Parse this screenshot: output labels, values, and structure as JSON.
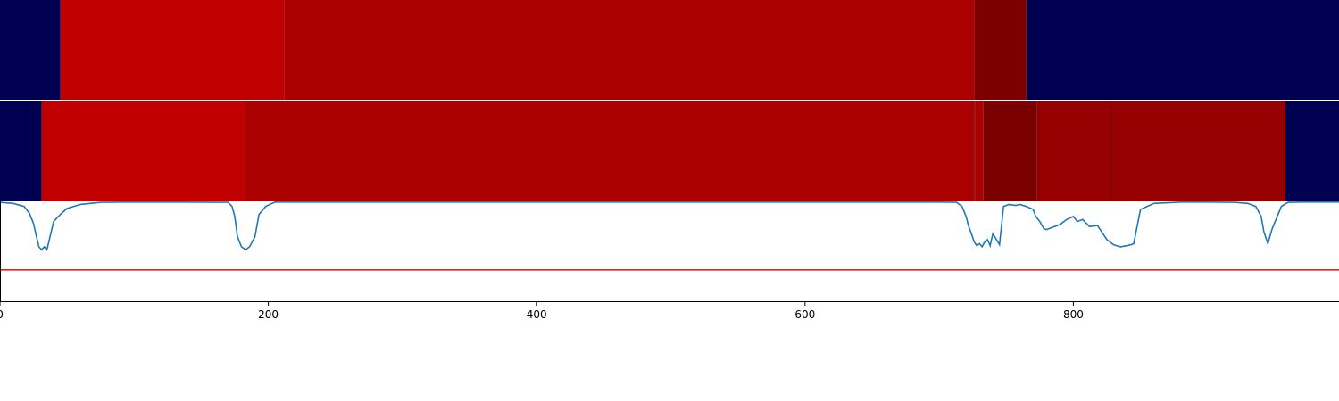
{
  "chart_data": {
    "type": "heatmap",
    "title": "",
    "xlabel": "",
    "ylabel": "",
    "xlim": [
      0,
      998
    ],
    "x_ticks": [
      0,
      200,
      400,
      600,
      800
    ],
    "colors": {
      "background": "#000050",
      "segment_light": "#c00000",
      "segment_mid": "#aa0000",
      "segment_dark": "#960000",
      "segment_darkest": "#7a0000",
      "line": "#1f77b4",
      "threshold": "#d62728"
    },
    "tracks": [
      {
        "segments": [
          {
            "start": 0,
            "end": 45,
            "color": "#000050"
          },
          {
            "start": 45,
            "end": 212,
            "color": "#c00000"
          },
          {
            "start": 212,
            "end": 726,
            "color": "#aa0000"
          },
          {
            "start": 726,
            "end": 765,
            "color": "#7d0000"
          },
          {
            "start": 765,
            "end": 998,
            "color": "#000050"
          }
        ]
      },
      {
        "segments": [
          {
            "start": 0,
            "end": 31,
            "color": "#000050"
          },
          {
            "start": 31,
            "end": 182,
            "color": "#c00000"
          },
          {
            "start": 182,
            "end": 726,
            "color": "#aa0000"
          },
          {
            "start": 726,
            "end": 727,
            "color": "#7a0000"
          },
          {
            "start": 727,
            "end": 733,
            "color": "#aa0000"
          },
          {
            "start": 733,
            "end": 773,
            "color": "#7a0000"
          },
          {
            "start": 773,
            "end": 828,
            "color": "#960000"
          },
          {
            "start": 828,
            "end": 829,
            "color": "#7a0000"
          },
          {
            "start": 829,
            "end": 958,
            "color": "#960000"
          },
          {
            "start": 958,
            "end": 998,
            "color": "#000050"
          }
        ]
      }
    ],
    "line_panel": {
      "ylim": [
        0,
        1
      ],
      "threshold": 0.32,
      "series": [
        {
          "x": [
            0,
            10,
            18,
            22,
            25,
            27,
            29,
            31,
            33,
            35,
            40,
            45,
            50,
            60,
            75,
            90,
            110,
            130,
            170,
            173,
            175,
            177,
            180,
            183,
            186,
            190,
            193,
            198,
            205,
            600,
            700,
            713,
            717,
            720,
            722,
            724,
            726,
            728,
            730,
            732,
            734,
            736,
            738,
            740,
            745,
            748,
            752,
            757,
            760,
            765,
            770,
            772,
            775,
            778,
            780,
            790,
            795,
            800,
            803,
            807,
            812,
            818,
            825,
            830,
            835,
            840,
            843,
            845,
            850,
            860,
            880,
            900,
            920,
            930,
            936,
            940,
            942,
            945,
            948,
            955,
            960,
            970,
            998
          ],
          "y": [
            0.99,
            0.98,
            0.95,
            0.88,
            0.78,
            0.66,
            0.55,
            0.52,
            0.55,
            0.52,
            0.8,
            0.87,
            0.93,
            0.97,
            0.99,
            1.0,
            1.0,
            1.0,
            0.99,
            0.95,
            0.85,
            0.65,
            0.55,
            0.52,
            0.55,
            0.65,
            0.87,
            0.95,
            1.0,
            1.0,
            1.0,
            0.99,
            0.95,
            0.85,
            0.75,
            0.68,
            0.6,
            0.56,
            0.58,
            0.55,
            0.6,
            0.62,
            0.56,
            0.68,
            0.57,
            0.95,
            0.97,
            0.96,
            0.97,
            0.95,
            0.92,
            0.85,
            0.8,
            0.73,
            0.72,
            0.77,
            0.82,
            0.85,
            0.8,
            0.82,
            0.75,
            0.76,
            0.62,
            0.57,
            0.55,
            0.56,
            0.57,
            0.58,
            0.92,
            0.98,
            1.0,
            1.0,
            0.99,
            0.98,
            0.95,
            0.85,
            0.7,
            0.58,
            0.72,
            0.95,
            0.99,
            1.0,
            1.0
          ]
        }
      ]
    }
  }
}
